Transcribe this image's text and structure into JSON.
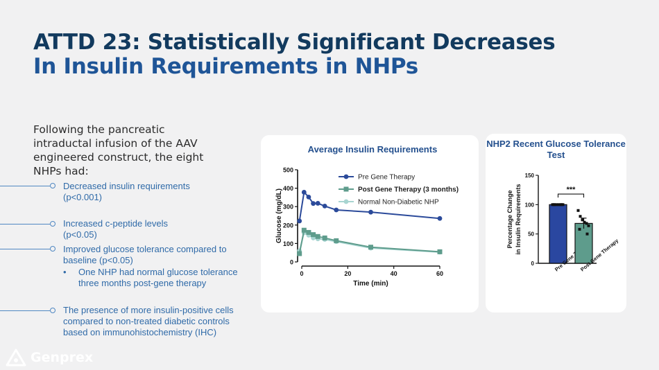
{
  "slide": {
    "title_line1": "ATTD 23: Statistically Significant Decreases",
    "title_line2": "In Insulin Requirements in NHPs",
    "intro": "Following the pancreatic intraductal infusion of the AAV engineered construct, the eight NHPs had:",
    "bullets": [
      {
        "text": "Decreased insulin requirements (p<0.001)"
      },
      {
        "text": "Increased c-peptide levels (p<0.05)"
      },
      {
        "text": "Improved glucose tolerance compared to baseline (p<0.05)"
      },
      {
        "text": "The presence of more insulin-positive cells compared to non-treated diabetic controls based on immunohistochemistry (IHC)"
      }
    ],
    "sub_bullet": {
      "marker": "•",
      "text": "One NHP had normal glucose tolerance three months post-gene therapy"
    },
    "logo_text": "Genprex"
  },
  "colors": {
    "title_dark": "#123a5e",
    "title_blue": "#1f5597",
    "bullet_blue": "#2f6aa8",
    "pre": "#2b4a9a",
    "post": "#5e9c8c",
    "normal": "#a8d5d1"
  },
  "chart_data": [
    {
      "type": "line",
      "title": "Average Insulin Requirements",
      "xlabel": "Time (min)",
      "ylabel": "Glucose (mg/dL)",
      "xlim": [
        0,
        60
      ],
      "ylim": [
        0,
        500
      ],
      "xticks": [
        0,
        20,
        40,
        60
      ],
      "yticks": [
        0,
        100,
        200,
        300,
        400,
        500
      ],
      "legend_position": "top-right",
      "series": [
        {
          "name": "Pre Gene Therapy",
          "color": "#2b4a9a",
          "marker": "circle",
          "bold": false,
          "x": [
            -1,
            1,
            3,
            5,
            7,
            10,
            15,
            30,
            60
          ],
          "y": [
            222,
            378,
            352,
            317,
            318,
            303,
            282,
            270,
            236
          ]
        },
        {
          "name": "Post Gene Therapy (3 months)",
          "color": "#5e9c8c",
          "marker": "square",
          "bold": true,
          "x": [
            -1,
            1,
            3,
            5,
            7,
            10,
            15,
            30,
            60
          ],
          "y": [
            45,
            172,
            160,
            148,
            138,
            130,
            115,
            80,
            55
          ]
        },
        {
          "name": "Normal Non-Diabetic NHP",
          "color": "#a8d5d1",
          "marker": "circle",
          "bold": false,
          "x": [
            -1,
            1,
            3,
            5,
            7,
            10,
            15,
            30,
            60
          ],
          "y": [
            60,
            158,
            145,
            130,
            125,
            122,
            110,
            75,
            53
          ]
        }
      ]
    },
    {
      "type": "bar",
      "title": "NHP2 Recent Glucose Tolerance Test",
      "ylabel": "Percentage Change in Insulin Requirements",
      "ylim": [
        0,
        150
      ],
      "yticks": [
        0,
        50,
        100,
        150
      ],
      "categories": [
        "Pre Gene Therapy",
        "Post Gene Therapy"
      ],
      "values": [
        100,
        68
      ],
      "errors": [
        1,
        9
      ],
      "colors": [
        "#2a47a0",
        "#5e9c8c"
      ],
      "points": [
        [
          100,
          100,
          100,
          100,
          100,
          100,
          100,
          100
        ],
        [
          90,
          80,
          74,
          70,
          68,
          64,
          58,
          50
        ]
      ],
      "annotation": "***"
    }
  ]
}
